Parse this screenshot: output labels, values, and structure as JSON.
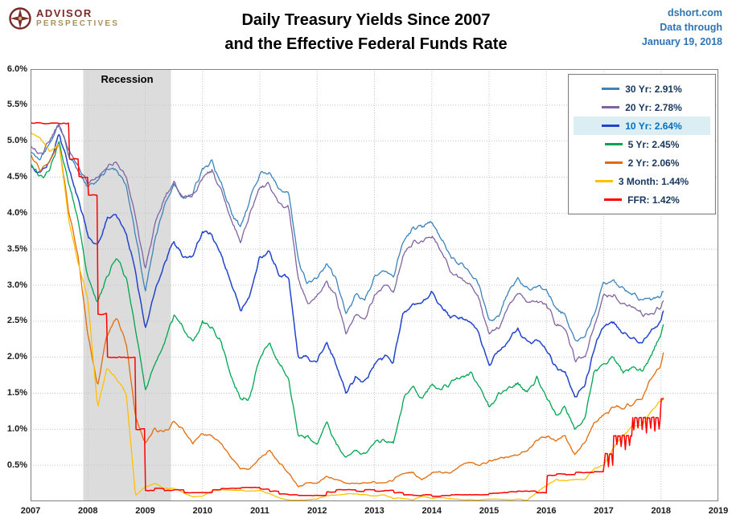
{
  "header": {
    "logo_line1": "ADVISOR",
    "logo_line2": "PERSPECTIVES",
    "title_line1": "Daily Treasury Yields Since 2007",
    "title_line2": "and the Effective Federal Funds Rate",
    "source_site": "dshort.com",
    "source_label": "Data through",
    "source_date": "January 19, 2018"
  },
  "chart_data": {
    "type": "line",
    "title": "Daily Treasury Yields Since 2007 and the Effective Federal Funds Rate",
    "xlim": [
      2007,
      2019
    ],
    "ylim": [
      0,
      6
    ],
    "grid": true,
    "legend_position": "top-right",
    "legend_text_color": "#17375e",
    "recession": {
      "label": "Recession",
      "start": 2007.92,
      "end": 2009.45
    },
    "highlight": {
      "series": "10 Yr",
      "bg": "#daeef3",
      "text": "#0070c0"
    },
    "y_ticks": [
      {
        "v": 6.0,
        "label": "6.0%"
      },
      {
        "v": 5.5,
        "label": "5.5%"
      },
      {
        "v": 5.0,
        "label": "5.0%"
      },
      {
        "v": 4.5,
        "label": "4.5%"
      },
      {
        "v": 4.0,
        "label": "4.0%"
      },
      {
        "v": 3.5,
        "label": "3.5%"
      },
      {
        "v": 3.0,
        "label": "3.0%"
      },
      {
        "v": 2.5,
        "label": "2.5%"
      },
      {
        "v": 2.0,
        "label": "2.0%"
      },
      {
        "v": 1.5,
        "label": "1.5%"
      },
      {
        "v": 1.0,
        "label": "1.0%"
      },
      {
        "v": 0.5,
        "label": "0.5%"
      }
    ],
    "x_ticks": [
      {
        "v": 2007,
        "label": "2007"
      },
      {
        "v": 2008,
        "label": "2008"
      },
      {
        "v": 2009,
        "label": "2009"
      },
      {
        "v": 2010,
        "label": "2010"
      },
      {
        "v": 2011,
        "label": "2011"
      },
      {
        "v": 2012,
        "label": "2012"
      },
      {
        "v": 2013,
        "label": "2013"
      },
      {
        "v": 2014,
        "label": "2014"
      },
      {
        "v": 2015,
        "label": "2015"
      },
      {
        "v": 2016,
        "label": "2016"
      },
      {
        "v": 2017,
        "label": "2017"
      },
      {
        "v": 2018,
        "label": "2018"
      },
      {
        "v": 2019,
        "label": "2019"
      }
    ],
    "x": [
      2007.0,
      2007.17,
      2007.33,
      2007.5,
      2007.67,
      2007.83,
      2008.0,
      2008.17,
      2008.33,
      2008.5,
      2008.67,
      2008.83,
      2009.0,
      2009.17,
      2009.33,
      2009.5,
      2009.67,
      2009.83,
      2010.0,
      2010.17,
      2010.33,
      2010.5,
      2010.67,
      2010.83,
      2011.0,
      2011.17,
      2011.33,
      2011.5,
      2011.67,
      2011.83,
      2012.0,
      2012.17,
      2012.33,
      2012.5,
      2012.67,
      2012.83,
      2013.0,
      2013.17,
      2013.33,
      2013.5,
      2013.67,
      2013.83,
      2014.0,
      2014.17,
      2014.33,
      2014.5,
      2014.67,
      2014.83,
      2015.0,
      2015.17,
      2015.33,
      2015.5,
      2015.67,
      2015.83,
      2016.0,
      2016.17,
      2016.33,
      2016.5,
      2016.67,
      2016.83,
      2017.0,
      2017.17,
      2017.33,
      2017.5,
      2017.67,
      2017.83,
      2018.0,
      2018.04
    ],
    "series": [
      {
        "name": "30 Yr",
        "legend_label": "30 Yr: 2.91%",
        "last_value": 2.91,
        "color": "#3b83bd",
        "values": [
          4.85,
          4.75,
          4.95,
          5.25,
          4.8,
          4.6,
          4.35,
          4.45,
          4.6,
          4.6,
          4.4,
          3.7,
          2.9,
          3.65,
          4.1,
          4.4,
          4.2,
          4.3,
          4.6,
          4.7,
          4.4,
          4.0,
          3.8,
          4.2,
          4.55,
          4.55,
          4.35,
          4.3,
          3.35,
          3.0,
          3.1,
          3.3,
          3.1,
          2.6,
          2.85,
          2.8,
          3.1,
          3.2,
          3.1,
          3.6,
          3.8,
          3.8,
          3.9,
          3.65,
          3.4,
          3.3,
          3.2,
          3.0,
          2.5,
          2.6,
          2.9,
          3.1,
          2.95,
          3.0,
          2.95,
          2.65,
          2.6,
          2.2,
          2.28,
          2.6,
          3.05,
          3.05,
          2.95,
          2.9,
          2.8,
          2.8,
          2.85,
          2.91
        ]
      },
      {
        "name": "20 Yr",
        "legend_label": "20 Yr: 2.78%",
        "last_value": 2.78,
        "color": "#8064a2",
        "values": [
          4.9,
          4.8,
          5.0,
          5.25,
          4.85,
          4.65,
          4.4,
          4.5,
          4.65,
          4.7,
          4.5,
          3.95,
          3.2,
          3.85,
          4.2,
          4.4,
          4.2,
          4.25,
          4.5,
          4.6,
          4.3,
          3.9,
          3.6,
          4.0,
          4.35,
          4.4,
          4.15,
          4.1,
          3.1,
          2.75,
          2.85,
          3.05,
          2.85,
          2.35,
          2.6,
          2.55,
          2.85,
          3.0,
          2.9,
          3.4,
          3.6,
          3.6,
          3.7,
          3.45,
          3.2,
          3.1,
          3.0,
          2.8,
          2.3,
          2.4,
          2.7,
          2.9,
          2.75,
          2.8,
          2.75,
          2.45,
          2.4,
          1.95,
          2.02,
          2.4,
          2.85,
          2.85,
          2.75,
          2.7,
          2.6,
          2.6,
          2.7,
          2.78
        ]
      },
      {
        "name": "10 Yr",
        "legend_label": "10 Yr: 2.64%",
        "last_value": 2.64,
        "color": "#2244cc",
        "values": [
          4.65,
          4.55,
          4.7,
          5.1,
          4.6,
          4.2,
          3.7,
          3.55,
          3.9,
          4.0,
          3.7,
          3.2,
          2.4,
          2.9,
          3.3,
          3.6,
          3.4,
          3.4,
          3.75,
          3.7,
          3.4,
          3.0,
          2.65,
          2.85,
          3.4,
          3.45,
          3.15,
          3.1,
          2.0,
          2.0,
          1.95,
          2.2,
          1.9,
          1.5,
          1.7,
          1.65,
          1.9,
          2.0,
          1.95,
          2.6,
          2.75,
          2.75,
          2.9,
          2.7,
          2.55,
          2.55,
          2.5,
          2.3,
          1.9,
          2.1,
          2.2,
          2.4,
          2.2,
          2.25,
          2.1,
          1.85,
          1.8,
          1.45,
          1.6,
          2.1,
          2.45,
          2.5,
          2.3,
          2.3,
          2.2,
          2.35,
          2.5,
          2.64
        ]
      },
      {
        "name": "5 Yr",
        "legend_label": "5 Yr: 2.45%",
        "last_value": 2.45,
        "color": "#00a550",
        "values": [
          4.7,
          4.5,
          4.6,
          5.0,
          4.4,
          3.9,
          3.1,
          2.75,
          3.1,
          3.4,
          3.1,
          2.4,
          1.55,
          1.9,
          2.2,
          2.6,
          2.4,
          2.2,
          2.5,
          2.4,
          2.2,
          1.75,
          1.4,
          1.45,
          2.0,
          2.2,
          1.9,
          1.7,
          0.9,
          0.9,
          0.8,
          1.1,
          0.8,
          0.6,
          0.7,
          0.65,
          0.8,
          0.85,
          0.8,
          1.4,
          1.6,
          1.4,
          1.65,
          1.55,
          1.65,
          1.7,
          1.8,
          1.6,
          1.3,
          1.5,
          1.55,
          1.65,
          1.5,
          1.7,
          1.45,
          1.2,
          1.3,
          1.0,
          1.15,
          1.8,
          1.9,
          2.0,
          1.8,
          1.85,
          1.8,
          2.05,
          2.3,
          2.45
        ]
      },
      {
        "name": "2 Yr",
        "legend_label": "2 Yr: 2.06%",
        "last_value": 2.06,
        "color": "#e36c0a",
        "values": [
          4.8,
          4.6,
          4.7,
          4.95,
          4.0,
          3.4,
          2.3,
          1.6,
          2.3,
          2.55,
          2.2,
          1.2,
          0.8,
          1.0,
          0.95,
          1.1,
          1.0,
          0.8,
          0.95,
          0.9,
          0.8,
          0.6,
          0.45,
          0.45,
          0.6,
          0.7,
          0.55,
          0.4,
          0.2,
          0.25,
          0.25,
          0.35,
          0.3,
          0.25,
          0.25,
          0.25,
          0.27,
          0.25,
          0.3,
          0.4,
          0.4,
          0.3,
          0.4,
          0.4,
          0.4,
          0.5,
          0.55,
          0.5,
          0.55,
          0.6,
          0.6,
          0.65,
          0.7,
          0.85,
          0.9,
          0.85,
          0.9,
          0.65,
          0.8,
          1.1,
          1.2,
          1.3,
          1.3,
          1.35,
          1.45,
          1.7,
          1.9,
          2.06
        ]
      },
      {
        "name": "3 Month",
        "legend_label": "3 Month: 1.44%",
        "last_value": 1.44,
        "color": "#ffc000",
        "values": [
          5.1,
          5.05,
          4.85,
          4.95,
          3.9,
          3.3,
          2.8,
          1.3,
          1.85,
          1.7,
          1.5,
          0.08,
          0.2,
          0.25,
          0.18,
          0.18,
          0.12,
          0.06,
          0.07,
          0.15,
          0.16,
          0.16,
          0.15,
          0.14,
          0.15,
          0.1,
          0.05,
          0.02,
          0.01,
          0.02,
          0.03,
          0.08,
          0.09,
          0.1,
          0.1,
          0.09,
          0.07,
          0.09,
          0.04,
          0.04,
          0.02,
          0.07,
          0.04,
          0.05,
          0.04,
          0.02,
          0.02,
          0.02,
          0.03,
          0.03,
          0.02,
          0.03,
          0.01,
          0.13,
          0.22,
          0.3,
          0.28,
          0.3,
          0.3,
          0.45,
          0.5,
          0.75,
          0.9,
          1.05,
          1.05,
          1.25,
          1.4,
          1.44
        ]
      },
      {
        "name": "FFR",
        "legend_label": "FFR: 1.42%",
        "last_value": 1.42,
        "color": "#ff0000",
        "step": true,
        "values": [
          5.25,
          5.25,
          5.25,
          5.25,
          4.75,
          4.5,
          4.25,
          2.6,
          2.0,
          2.0,
          2.0,
          1.0,
          0.15,
          0.18,
          0.15,
          0.16,
          0.12,
          0.12,
          0.12,
          0.16,
          0.18,
          0.18,
          0.19,
          0.19,
          0.17,
          0.14,
          0.1,
          0.09,
          0.08,
          0.08,
          0.08,
          0.13,
          0.16,
          0.16,
          0.14,
          0.16,
          0.14,
          0.15,
          0.12,
          0.09,
          0.08,
          0.09,
          0.07,
          0.08,
          0.09,
          0.09,
          0.09,
          0.09,
          0.11,
          0.12,
          0.13,
          0.14,
          0.14,
          0.12,
          0.36,
          0.38,
          0.37,
          0.4,
          0.4,
          0.41,
          0.66,
          0.91,
          0.91,
          1.16,
          1.16,
          1.16,
          1.42,
          1.42
        ]
      }
    ]
  }
}
